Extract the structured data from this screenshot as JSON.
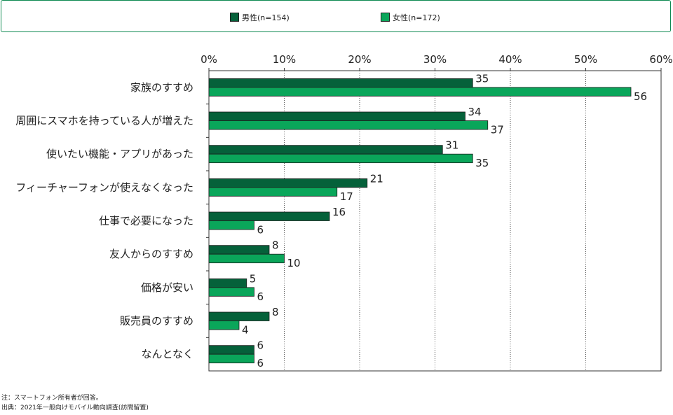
{
  "chart_data": {
    "type": "bar",
    "orientation": "horizontal",
    "categories": [
      "家族のすすめ",
      "周囲にスマホを持っている人が増えた",
      "使いたい機能・アプリがあった",
      "フィーチャーフォンが使えなくなった",
      "仕事で必要になった",
      "友人からのすすめ",
      "価格が安い",
      "販売員のすすめ",
      "なんとなく"
    ],
    "series": [
      {
        "name": "男性(n=154)",
        "color": "#05613a",
        "values": [
          35,
          34,
          31,
          21,
          16,
          8,
          5,
          8,
          6
        ]
      },
      {
        "name": "女性(n=172)",
        "color": "#0aa65a",
        "values": [
          56,
          37,
          35,
          17,
          6,
          10,
          6,
          4,
          6
        ]
      }
    ],
    "xlim": [
      0,
      60
    ],
    "xticks": [
      "0%",
      "10%",
      "20%",
      "30%",
      "40%",
      "50%",
      "60%"
    ],
    "grid": "vertical dotted",
    "legend": "top-center",
    "xlabel": "",
    "ylabel": ""
  },
  "notes": {
    "note": "注：スマートフォン所有者が回答。",
    "source": "出典：2021年一般向けモバイル動向調査(訪問留置)"
  }
}
